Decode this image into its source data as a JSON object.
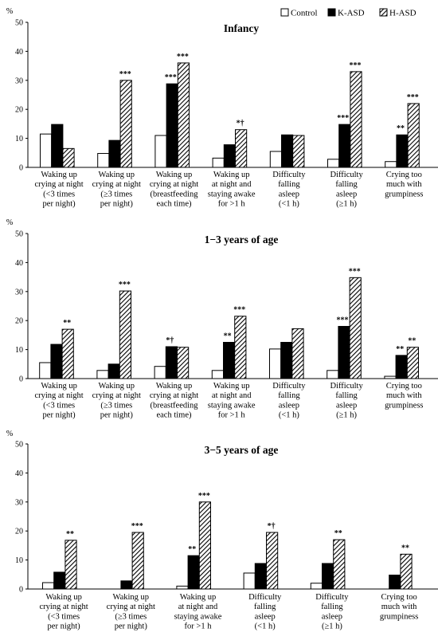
{
  "legend": [
    {
      "label": "Control",
      "color": "#ffffff",
      "pattern": "none"
    },
    {
      "label": "K-ASD",
      "color": "#000000",
      "pattern": "solid"
    },
    {
      "label": "H-ASD",
      "color": "#ffffff",
      "pattern": "hatch"
    }
  ],
  "chart_data": [
    {
      "type": "bar",
      "title": "Infancy",
      "ylabel": "%",
      "ylim": [
        0,
        50
      ],
      "yticks": [
        0,
        10,
        20,
        30,
        40,
        50
      ],
      "categories": [
        [
          "Waking up",
          "crying at night",
          "(<3 times",
          "per night)"
        ],
        [
          "Waking up",
          "crying at night",
          "(≥3 times",
          "per night)"
        ],
        [
          "Waking up",
          "crying at night",
          "(breastfeeding",
          "each time)"
        ],
        [
          "Waking up",
          "at night and",
          "staying awake",
          "for >1 h"
        ],
        [
          "Difficulty",
          "falling",
          "asleep",
          "(<1 h)"
        ],
        [
          "Difficulty",
          "falling",
          "asleep",
          "(≥1 h)"
        ],
        [
          "Crying too",
          "much with",
          "grumpiness"
        ]
      ],
      "series": [
        {
          "name": "Control",
          "values": [
            11.5,
            4.8,
            11.0,
            3.2,
            5.5,
            2.8,
            2.0
          ]
        },
        {
          "name": "K-ASD",
          "values": [
            14.8,
            9.3,
            28.8,
            7.8,
            11.2,
            14.8,
            11.2
          ]
        },
        {
          "name": "H-ASD",
          "values": [
            6.5,
            30.0,
            36.0,
            13.0,
            11.0,
            33.0,
            22.0
          ]
        }
      ],
      "annotations": [
        {
          "category": 1,
          "text": "***"
        },
        {
          "category": 2,
          "text": "***"
        },
        {
          "category": 3,
          "text": "*†"
        },
        {
          "category": 5,
          "text": "***"
        },
        {
          "category": 6,
          "text": "***"
        }
      ],
      "bar_annotations": [
        {
          "category": 2,
          "series": 1,
          "text": "***"
        },
        {
          "category": 5,
          "series": 1,
          "text": "***"
        },
        {
          "category": 6,
          "series": 1,
          "text": "**"
        }
      ]
    },
    {
      "type": "bar",
      "title": "1−3 years of age",
      "ylabel": "%",
      "ylim": [
        0,
        50
      ],
      "yticks": [
        0,
        10,
        20,
        30,
        40,
        50
      ],
      "categories": [
        [
          "Waking up",
          "crying at night",
          "(<3 times",
          "per night)"
        ],
        [
          "Waking up",
          "crying at night",
          "(≥3 times",
          "per night)"
        ],
        [
          "Waking up",
          "crying at night",
          "(breastfeeding",
          "each time)"
        ],
        [
          "Waking up",
          "at night and",
          "staying awake",
          "for >1 h"
        ],
        [
          "Difficulty",
          "falling",
          "asleep",
          "(<1 h)"
        ],
        [
          "Difficulty",
          "falling",
          "asleep",
          "(≥1 h)"
        ],
        [
          "Crying too",
          "much with",
          "grumpiness"
        ]
      ],
      "series": [
        {
          "name": "Control",
          "values": [
            5.5,
            2.8,
            4.2,
            2.8,
            10.2,
            2.8,
            0.8
          ]
        },
        {
          "name": "K-ASD",
          "values": [
            11.8,
            5.0,
            11.0,
            12.5,
            12.5,
            18.0,
            8.0
          ]
        },
        {
          "name": "H-ASD",
          "values": [
            17.0,
            30.2,
            10.8,
            21.5,
            17.2,
            34.8,
            10.8
          ]
        }
      ],
      "annotations": [
        {
          "category": 0,
          "text": "**"
        },
        {
          "category": 1,
          "text": "***"
        },
        {
          "category": 3,
          "text": "***"
        },
        {
          "category": 5,
          "text": "***"
        },
        {
          "category": 6,
          "text": "**"
        }
      ],
      "bar_annotations": [
        {
          "category": 2,
          "series": 1,
          "text": "*†"
        },
        {
          "category": 3,
          "series": 1,
          "text": "**"
        },
        {
          "category": 5,
          "series": 1,
          "text": "***"
        },
        {
          "category": 6,
          "series": 1,
          "text": "**"
        }
      ]
    },
    {
      "type": "bar",
      "title": "3−5 years of age",
      "ylabel": "%",
      "ylim": [
        0,
        50
      ],
      "yticks": [
        0,
        10,
        20,
        30,
        40,
        50
      ],
      "categories": [
        [
          "Waking up",
          "crying at night",
          "(<3 times",
          "per night)"
        ],
        [
          "Waking up",
          "crying at night",
          "(≥3 times",
          "per night)"
        ],
        [
          "Waking up",
          "at night and",
          "staying awake",
          "for >1 h"
        ],
        [
          "Difficulty",
          "falling",
          "asleep",
          "(<1 h)"
        ],
        [
          "Difficulty",
          "falling",
          "asleep",
          "(≥1 h)"
        ],
        [
          "Crying too",
          "much with",
          "grumpiness"
        ]
      ],
      "series": [
        {
          "name": "Control",
          "values": [
            2.2,
            0,
            1.0,
            5.5,
            2.0,
            0
          ]
        },
        {
          "name": "K-ASD",
          "values": [
            5.8,
            2.8,
            11.5,
            8.8,
            8.8,
            4.8
          ]
        },
        {
          "name": "H-ASD",
          "values": [
            16.8,
            19.5,
            30.0,
            19.5,
            17.0,
            12.0
          ]
        }
      ],
      "annotations": [
        {
          "category": 0,
          "text": "**"
        },
        {
          "category": 1,
          "text": "***"
        },
        {
          "category": 2,
          "text": "***"
        },
        {
          "category": 3,
          "text": "*†"
        },
        {
          "category": 4,
          "text": "**"
        },
        {
          "category": 5,
          "text": "**"
        }
      ],
      "bar_annotations": [
        {
          "category": 2,
          "series": 1,
          "text": "**"
        }
      ]
    }
  ]
}
